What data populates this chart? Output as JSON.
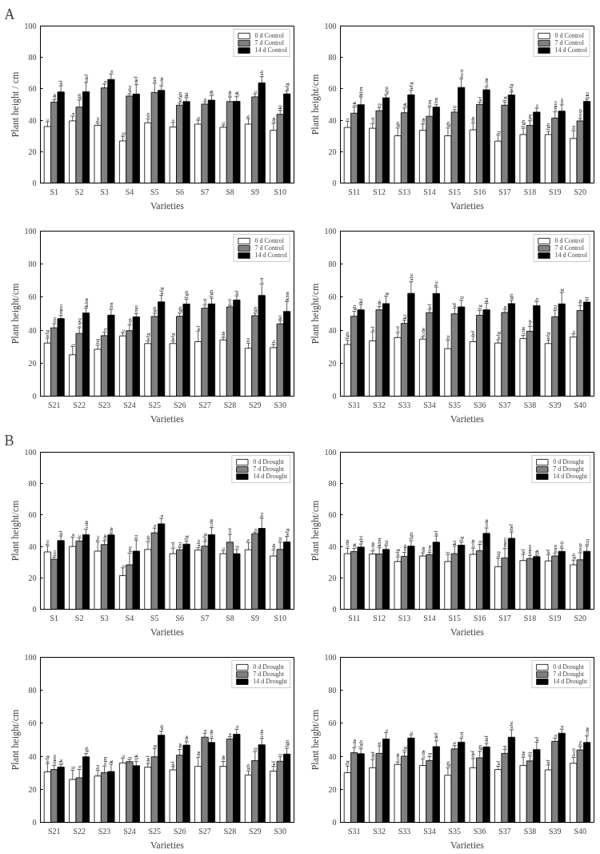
{
  "chart_data": [
    {
      "type": "bar",
      "annotations": [
        "A"
      ],
      "categories": [
        "S1",
        "S2",
        "S3",
        "S4",
        "S5",
        "S6",
        "S7",
        "S8",
        "S9",
        "S10"
      ],
      "xlabel": "Varieties",
      "ylabel": "Plant height / cm",
      "ylim": [
        0,
        100
      ],
      "yticks": [
        0,
        20,
        40,
        60,
        80,
        100
      ],
      "legend": "top right",
      "grid": false,
      "series": [
        {
          "name": "0 d Control",
          "color": "#ffffff",
          "values": [
            36,
            39.6,
            36.8,
            26.8,
            38.4,
            35.7,
            37.5,
            35.5,
            37.5,
            33.6
          ],
          "errors": [
            3,
            3,
            1.5,
            3,
            2.5,
            3,
            2.5,
            1.5,
            3.5,
            4.5
          ],
          "value_labels": [
            "c",
            "a",
            "bc",
            "ij",
            "ab",
            "c",
            "b",
            "c",
            "b",
            "de"
          ]
        },
        {
          "name": "7 d Control",
          "color": "#808080",
          "values": [
            51.5,
            48.4,
            60.6,
            55.4,
            57.7,
            49.6,
            50.3,
            51.9,
            54.9,
            43.8
          ],
          "errors": [
            1.5,
            4.5,
            2.5,
            1.5,
            6,
            1.5,
            1.5,
            3,
            2,
            2.5
          ],
          "value_labels": [
            "de",
            "gh",
            "a",
            "abc",
            "ab",
            "efgh",
            "e",
            "de",
            "c",
            "kl"
          ]
        },
        {
          "name": "14 d Control",
          "color": "#000000",
          "values": [
            58,
            58.1,
            66,
            56.7,
            59,
            51.9,
            52.8,
            52,
            63.8,
            56.8
          ],
          "errors": [
            4,
            6,
            3.5,
            6,
            3,
            2.5,
            3,
            3,
            4,
            2
          ],
          "value_labels": [
            "ef",
            "def",
            "a",
            "def",
            "cde",
            "kl",
            "jk",
            "jk",
            "ab",
            "efg"
          ]
        }
      ]
    },
    {
      "type": "bar",
      "categories": [
        "S11",
        "S12",
        "S13",
        "S14",
        "S15",
        "S16",
        "S17",
        "S18",
        "S19",
        "S20"
      ],
      "xlabel": "Varieties",
      "ylabel": "Plant height/cm",
      "ylim": [
        0,
        100
      ],
      "yticks": [
        0,
        20,
        40,
        60,
        80,
        100
      ],
      "legend": "top right",
      "grid": false,
      "series": [
        {
          "name": "0 d Control",
          "color": "#ffffff",
          "values": [
            35.4,
            34.9,
            30.1,
            33.6,
            30.1,
            33.9,
            26.7,
            30.9,
            30.9,
            28.4
          ],
          "errors": [
            4,
            3,
            5,
            4,
            5,
            4.5,
            4,
            4,
            2,
            5
          ],
          "value_labels": [
            "c",
            "cd",
            "gh",
            "de",
            "gh",
            "de",
            "ij",
            "fgh",
            "fgh",
            "hi"
          ]
        },
        {
          "name": "7 d Control",
          "color": "#808080",
          "values": [
            44.5,
            46.1,
            44.8,
            42.5,
            45.2,
            50.1,
            49.6,
            36.7,
            41.4,
            39.6
          ],
          "errors": [
            4,
            2,
            3,
            6,
            1.5,
            1.5,
            2,
            3,
            4,
            1.5
          ],
          "value_labels": [
            "jk",
            "ij",
            "jk",
            "lm",
            "ij",
            "ef",
            "fg",
            "pq",
            "mno",
            "nop"
          ]
        },
        {
          "name": "14 d Control",
          "color": "#000000",
          "values": [
            49.9,
            54.3,
            56.2,
            48.4,
            60.9,
            59.4,
            56.1,
            45.2,
            45.8,
            52
          ],
          "errors": [
            5,
            2,
            3,
            1.5,
            5.5,
            2,
            2,
            2.5,
            4,
            1.5
          ],
          "value_labels": [
            "klm",
            "ghi",
            "efg",
            "lm",
            "bcd",
            "cde",
            "efg",
            "o",
            "no",
            "jkl"
          ]
        }
      ]
    },
    {
      "type": "bar",
      "categories": [
        "S21",
        "S22",
        "S23",
        "S24",
        "S25",
        "S26",
        "S27",
        "S28",
        "S29",
        "S30"
      ],
      "xlabel": "Varieties",
      "ylabel": "Plant height/cm",
      "ylim": [
        0,
        100
      ],
      "yticks": [
        0,
        20,
        40,
        60,
        80,
        100
      ],
      "legend": "top right",
      "grid": false,
      "series": [
        {
          "name": "0 d Control",
          "color": "#ffffff",
          "values": [
            32.2,
            25.1,
            28.4,
            36.5,
            31.9,
            31.9,
            33,
            34.1,
            29,
            29.4
          ],
          "errors": [
            3,
            5,
            2.5,
            2,
            1.5,
            1.5,
            6.5,
            1.5,
            3,
            2
          ],
          "value_labels": [
            "efg",
            "j",
            "hij",
            "c",
            "efg",
            "efg",
            "ef",
            "de",
            "hi",
            "h"
          ]
        },
        {
          "name": "7 d Control",
          "color": "#808080",
          "values": [
            41.4,
            38,
            36.7,
            39.7,
            48.3,
            48.4,
            53.3,
            54.1,
            48.8,
            43.8
          ],
          "errors": [
            2.5,
            3.5,
            2,
            3.5,
            2,
            2,
            2,
            1,
            1.5,
            2
          ],
          "value_labels": [
            "no",
            "opq",
            "q",
            "op",
            "gh",
            "gh",
            "cd",
            "cd",
            "gh",
            "kl"
          ]
        },
        {
          "name": "14 d Control",
          "color": "#000000",
          "values": [
            47,
            50.4,
            49.1,
            48,
            57.1,
            55.8,
            55.9,
            58.3,
            61,
            51.3
          ],
          "errors": [
            2,
            3,
            3.5,
            2,
            4,
            3,
            3.5,
            2.5,
            7,
            6
          ],
          "value_labels": [
            "mno",
            "klm",
            "lm",
            "mn",
            "efg",
            "fgh",
            "fgh",
            "ef",
            "cd",
            "klm"
          ]
        }
      ]
    },
    {
      "type": "bar",
      "categories": [
        "S31",
        "S32",
        "S33",
        "S34",
        "S35",
        "S36",
        "S37",
        "S38",
        "S39",
        "S40"
      ],
      "xlabel": "Varieties",
      "ylabel": "Plant height/cm",
      "ylim": [
        0,
        100
      ],
      "yticks": [
        0,
        20,
        40,
        60,
        80,
        100
      ],
      "legend": "top right",
      "grid": false,
      "series": [
        {
          "name": "0 d Control",
          "color": "#ffffff",
          "values": [
            31.3,
            33.5,
            35.5,
            34.6,
            28.8,
            33,
            32.2,
            34.9,
            31.9,
            35.8
          ],
          "errors": [
            2.5,
            5.5,
            3,
            1.5,
            5,
            3.5,
            2,
            2,
            2,
            2
          ],
          "value_labels": [
            "fgh",
            "ef",
            "cd",
            "cde",
            "hi",
            "ef",
            "efg",
            "cde",
            "efg",
            "c"
          ]
        },
        {
          "name": "7 d Control",
          "color": "#808080",
          "values": [
            48.4,
            52.3,
            44.1,
            50.6,
            49.9,
            49,
            50.7,
            39.3,
            48.1,
            51.9
          ],
          "errors": [
            3,
            2,
            2,
            2,
            3.5,
            3,
            2,
            3,
            4,
            3
          ],
          "value_labels": [
            "gh",
            "de",
            "kl",
            "ef",
            "ef",
            "fg",
            "e",
            "op",
            "hi",
            "de"
          ]
        },
        {
          "name": "14 d Control",
          "color": "#000000",
          "values": [
            52.3,
            56.1,
            62.3,
            62.2,
            54.1,
            52.3,
            56.1,
            54.8,
            55.9,
            57
          ],
          "errors": [
            3.5,
            4.5,
            7,
            4,
            4,
            4,
            2,
            2.5,
            7,
            1.5
          ],
          "value_labels": [
            "kl",
            "g",
            "abc",
            "bc",
            "ij",
            "kl",
            "gh",
            "h",
            "g",
            "f"
          ]
        }
      ]
    },
    {
      "type": "bar",
      "annotations": [
        "B"
      ],
      "categories": [
        "S1",
        "S2",
        "S3",
        "S4",
        "S5",
        "S6",
        "S7",
        "S8",
        "S9",
        "S10"
      ],
      "xlabel": "Varieties",
      "ylabel": "Plant height/cm",
      "ylim": [
        0,
        100
      ],
      "yticks": [
        0,
        20,
        40,
        60,
        80,
        100
      ],
      "legend": "top right",
      "grid": false,
      "series": [
        {
          "name": "0 d Drought",
          "color": "#ffffff",
          "values": [
            36.5,
            40,
            37,
            21.4,
            38.1,
            35.4,
            37.7,
            35.4,
            37.9,
            33.9
          ],
          "errors": [
            4,
            6,
            6,
            5,
            5,
            3.5,
            1.5,
            2,
            4.5,
            4
          ],
          "value_labels": [
            "bc",
            "a",
            "bc",
            "j",
            "ab",
            "cd",
            "abc",
            "c",
            "b",
            "de"
          ]
        },
        {
          "name": "7 d Drought",
          "color": "#808080",
          "values": [
            31.8,
            43.5,
            41.2,
            28.3,
            48.7,
            37.9,
            40.2,
            42.7,
            48.1,
            38.1
          ],
          "errors": [
            1.5,
            2,
            2.5,
            7.5,
            3,
            1.5,
            3,
            5,
            1,
            4.5
          ],
          "value_labels": [
            "no",
            "c",
            "de",
            "pq",
            "a",
            "hi",
            "efg",
            "cd",
            "a",
            "hi"
          ]
        },
        {
          "name": "14 d Drought",
          "color": "#000000",
          "values": [
            43.7,
            47.5,
            47.3,
            37,
            54.4,
            41.5,
            47.5,
            35.4,
            51.5,
            42.9
          ],
          "errors": [
            3,
            3.5,
            1,
            7,
            3.5,
            2,
            4.5,
            2.5,
            6.5,
            3.5
          ],
          "value_labels": [
            "ef",
            "cde",
            "de",
            "hi",
            "a",
            "fg",
            "cde",
            "ij",
            "bc",
            "efg"
          ]
        }
      ]
    },
    {
      "type": "bar",
      "categories": [
        "S11",
        "S12",
        "S13",
        "S14",
        "S15",
        "S16",
        "S17",
        "S18",
        "S19",
        "S20"
      ],
      "xlabel": "Varieties",
      "ylabel": "Plant height/cm",
      "ylim": [
        0,
        100
      ],
      "yticks": [
        0,
        20,
        40,
        60,
        80,
        100
      ],
      "legend": "top right",
      "grid": false,
      "series": [
        {
          "name": "0 d Drought",
          "color": "#ffffff",
          "values": [
            35.4,
            35.2,
            30.4,
            33.9,
            30.4,
            35,
            27.1,
            31,
            30.8,
            28.3
          ],
          "errors": [
            3.5,
            2,
            3,
            2,
            4.5,
            4,
            5.5,
            4,
            4,
            3
          ],
          "value_labels": [
            "cde",
            "cde",
            "efg",
            "de",
            "f",
            "cde",
            "hij",
            "ef",
            "ef",
            "gh"
          ]
        },
        {
          "name": "7 d Drought",
          "color": "#808080",
          "values": [
            36.7,
            35.2,
            33.7,
            34.8,
            35.4,
            37.3,
            32.7,
            32.3,
            33.9,
            31.5
          ],
          "errors": [
            2,
            4,
            2.5,
            1.5,
            5,
            4,
            6,
            2,
            2,
            4.5
          ],
          "value_labels": [
            "jk",
            "klm",
            "mn",
            "lm",
            "kl",
            "ij",
            "mno",
            "mno",
            "mn",
            "nop"
          ]
        },
        {
          "name": "14 d Drought",
          "color": "#000000",
          "values": [
            39.6,
            38.1,
            40.2,
            42.7,
            40.8,
            48.3,
            45.2,
            33.5,
            36.9,
            36.9
          ],
          "errors": [
            2,
            2.5,
            3.5,
            4,
            2,
            3.5,
            4,
            1,
            2,
            3.5
          ],
          "value_labels": [
            "ghi",
            "hi",
            "fgh",
            "ef",
            "fg",
            "cde",
            "def",
            "jk",
            "hij",
            "hij"
          ]
        }
      ]
    },
    {
      "type": "bar",
      "categories": [
        "S21",
        "S22",
        "S23",
        "S24",
        "S25",
        "S26",
        "S27",
        "S28",
        "S29",
        "S30"
      ],
      "xlabel": "Varieties",
      "ylabel": "Plant height/cm",
      "ylim": [
        0,
        100
      ],
      "yticks": [
        0,
        20,
        40,
        60,
        80,
        100
      ],
      "legend": "top right",
      "grid": false,
      "series": [
        {
          "name": "0 d Drought",
          "color": "#ffffff",
          "values": [
            30.6,
            26,
            28.1,
            36,
            33.5,
            31.8,
            33.9,
            33.9,
            28.7,
            31
          ],
          "errors": [
            5,
            5.5,
            3.5,
            3,
            2,
            2,
            5.5,
            3,
            2.5,
            3
          ],
          "value_labels": [
            "efg",
            "ij",
            "hi",
            "c",
            "def",
            "ef",
            "de",
            "de",
            "gh",
            "ef"
          ]
        },
        {
          "name": "7 d Drought",
          "color": "#808080",
          "values": [
            32,
            27,
            30.1,
            36.8,
            39.7,
            40.7,
            51.6,
            50.5,
            37.4,
            37
          ],
          "errors": [
            2.5,
            5,
            4,
            1.5,
            5,
            3.5,
            2.5,
            1.5,
            5.5,
            3
          ],
          "value_labels": [
            "mno",
            "q",
            "opq",
            "j",
            "g",
            "de",
            "a",
            "a",
            "ij",
            "j"
          ]
        },
        {
          "name": "14 d Drought",
          "color": "#000000",
          "values": [
            33.5,
            39.7,
            30.8,
            34.3,
            52.8,
            46.8,
            48.4,
            53.4,
            47,
            41.4
          ],
          "errors": [
            1.5,
            2,
            4.5,
            2.5,
            2.5,
            2,
            2.5,
            3,
            4,
            3.5
          ],
          "value_labels": [
            "jk",
            "gh",
            "k",
            "ijk",
            "ab",
            "de",
            "cde",
            "a",
            "cde",
            "fgh"
          ]
        }
      ]
    },
    {
      "type": "bar",
      "categories": [
        "S31",
        "S32",
        "S33",
        "S34",
        "S35",
        "S36",
        "S37",
        "S38",
        "S39",
        "S40"
      ],
      "xlabel": "Varieties",
      "ylabel": "Plant height/cm",
      "ylim": [
        0,
        100
      ],
      "yticks": [
        0,
        20,
        40,
        60,
        80,
        100
      ],
      "legend": "top right",
      "grid": false,
      "series": [
        {
          "name": "0 d Drought",
          "color": "#ffffff",
          "values": [
            30.1,
            33.1,
            35.1,
            34.5,
            28.5,
            33.1,
            32,
            34.5,
            31.8,
            35.8
          ],
          "errors": [
            4,
            5,
            1.5,
            4,
            4.5,
            5.5,
            2,
            5,
            3,
            3.5
          ],
          "value_labels": [
            "fg",
            "def",
            "cde",
            "cde",
            "gh",
            "def",
            "ef",
            "de",
            "ef",
            "bcd"
          ]
        },
        {
          "name": "7 d Drought",
          "color": "#808080",
          "values": [
            42.2,
            41.8,
            40.1,
            37.4,
            44.5,
            39.1,
            41.8,
            37.2,
            49.1,
            43.9
          ],
          "errors": [
            3,
            4.5,
            2.5,
            2.5,
            2,
            4,
            2.5,
            3,
            2,
            2
          ],
          "value_labels": [
            "cde",
            "d",
            "fg",
            "ij",
            "b",
            "gh",
            "d",
            "ij",
            "a",
            "bc"
          ]
        },
        {
          "name": "14 d Drought",
          "color": "#000000",
          "values": [
            41.6,
            50.5,
            51.1,
            45.9,
            48.6,
            45.7,
            51.6,
            44.1,
            54,
            48.4
          ],
          "errors": [
            3,
            4,
            2,
            3.5,
            2.5,
            2,
            4.5,
            4.5,
            2.5,
            4
          ],
          "value_labels": [
            "fgh",
            "c",
            "c",
            "def",
            "cd",
            "def",
            "abc",
            "ef",
            "a",
            "cde"
          ]
        }
      ]
    }
  ]
}
